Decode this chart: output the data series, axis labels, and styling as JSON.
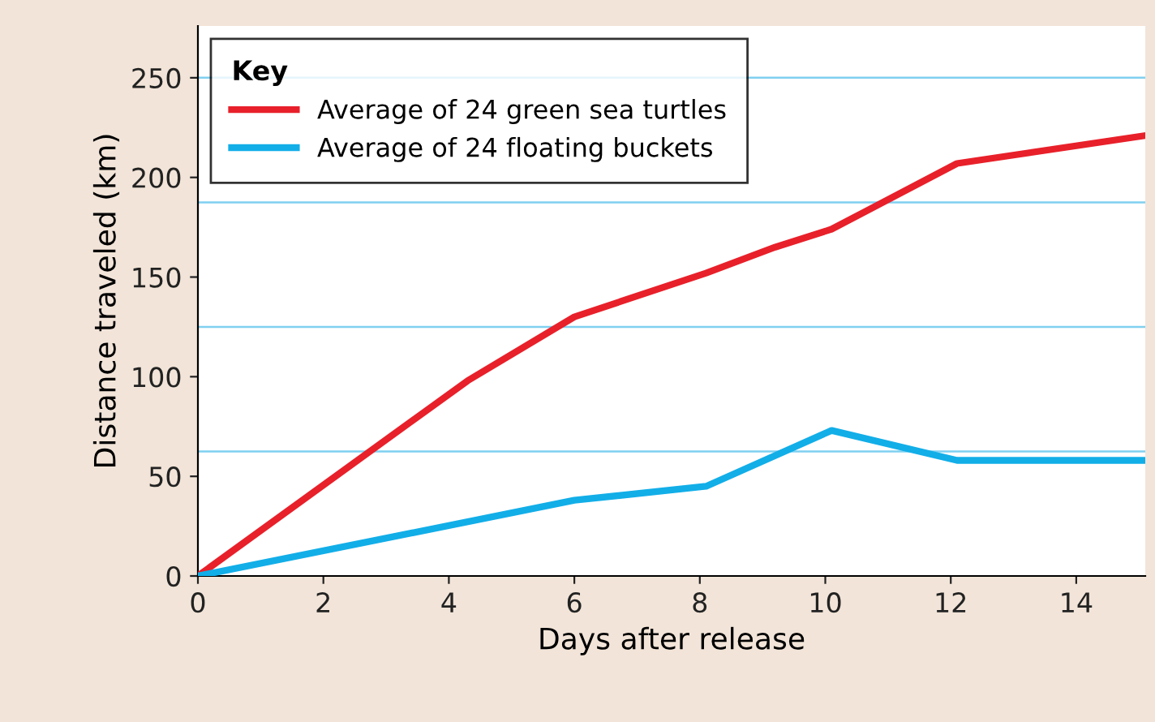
{
  "chart_data": {
    "type": "line",
    "xlabel": "Days after release",
    "ylabel": "Distance traveled (km)",
    "legend_title": "Key",
    "legend": "top left",
    "xlim": [
      0,
      15.1
    ],
    "xticks": [
      0,
      2,
      4,
      6,
      8,
      10,
      12,
      14
    ],
    "ylim": [
      0,
      276
    ],
    "yticks": [
      0,
      50,
      100,
      150,
      200,
      250
    ],
    "series": [
      {
        "name": "Average of 24 green sea turtles",
        "color": "#e8202a",
        "x": [
          0,
          4.3,
          6,
          8.1,
          9.2,
          10.1,
          12.1,
          15.1
        ],
        "values": [
          0,
          98,
          130,
          152,
          165,
          174,
          207,
          221
        ]
      },
      {
        "name": "Average of 24 floating buckets",
        "color": "#12aee8",
        "x": [
          0,
          6,
          8.1,
          10.1,
          12.1,
          15.1
        ],
        "values": [
          0,
          38,
          45,
          73,
          58,
          58
        ]
      }
    ],
    "ref_lines": [
      {
        "axis": "y",
        "value": 62.5,
        "color": "#7fd0f0"
      },
      {
        "axis": "y",
        "value": 125,
        "color": "#7fd0f0"
      },
      {
        "axis": "y",
        "value": 187.5,
        "color": "#7fd0f0"
      },
      {
        "axis": "y",
        "value": 250,
        "color": "#7fd0f0"
      }
    ]
  }
}
